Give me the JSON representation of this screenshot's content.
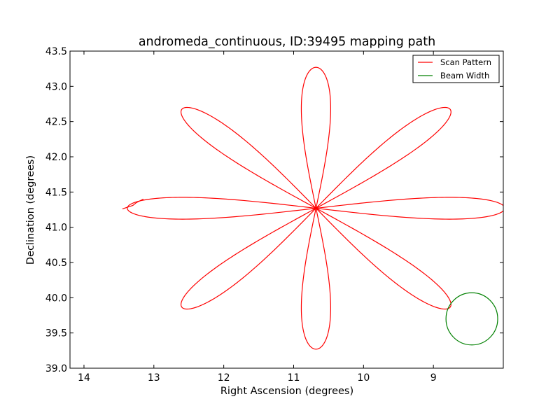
{
  "chart_data": {
    "type": "line",
    "title": "andromeda_continuous, ID:39495 mapping path",
    "xlabel": "Right Ascension (degrees)",
    "ylabel": "Declination (degrees)",
    "xlim": [
      14.2,
      8.0
    ],
    "ylim": [
      39.0,
      43.5
    ],
    "x_inverted": true,
    "xticks": [
      14,
      13,
      12,
      11,
      10,
      9
    ],
    "yticks": [
      39.0,
      39.5,
      40.0,
      40.5,
      41.0,
      41.5,
      42.0,
      42.5,
      43.0,
      43.5
    ],
    "grid": false,
    "legend_position": "top-right",
    "center": {
      "ra": 10.68,
      "dec": 41.27
    },
    "series": [
      {
        "name": "Scan Pattern",
        "color": "#ff0000",
        "shape": "rose",
        "petals": 8,
        "petal_length_ra_deg": 2.7,
        "petal_length_dec_deg": 2.0,
        "petal_width_ra_deg": 0.42,
        "petal_width_dec_deg": 0.31,
        "petal_angles_deg": [
          0,
          45,
          90,
          135,
          180,
          225,
          270,
          315
        ],
        "lead_in_ra": [
          13.45,
          13.3,
          13.25,
          13.15
        ],
        "lead_in_dec": [
          41.26,
          41.31,
          41.35,
          41.4
        ]
      },
      {
        "name": "Beam Width",
        "color": "#008000",
        "shape": "circle",
        "center": {
          "ra": 8.45,
          "dec": 39.7
        },
        "radius_ra_deg": 0.37,
        "radius_dec_deg": 0.37
      }
    ]
  }
}
